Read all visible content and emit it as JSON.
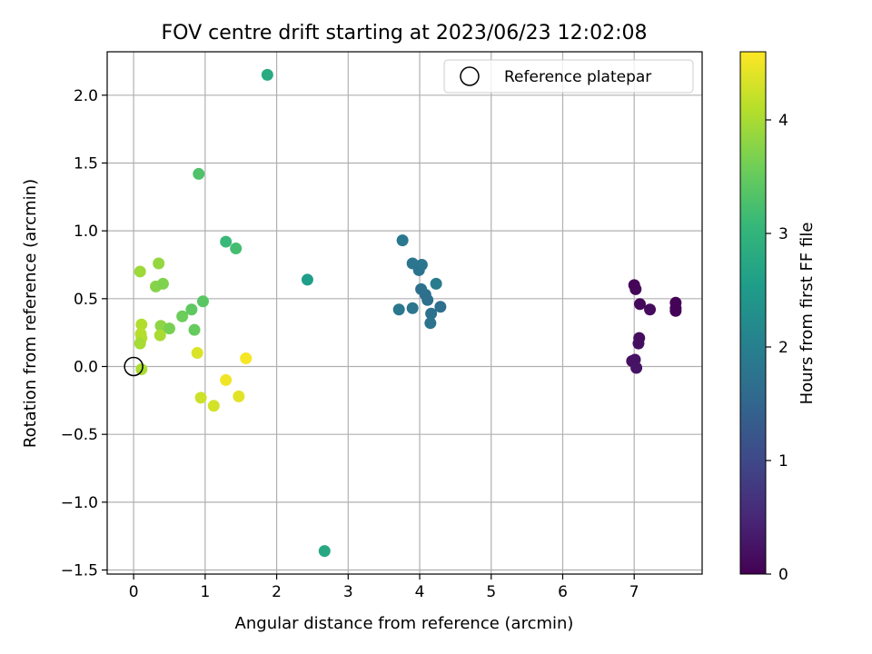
{
  "chart_data": {
    "type": "scatter",
    "title": "FOV centre drift starting at 2023/06/23 12:02:08",
    "xlabel": "Angular distance from reference (arcmin)",
    "ylabel": "Rotation from reference (arcmin)",
    "xlim": [
      -0.37,
      7.95
    ],
    "ylim": [
      -1.53,
      2.32
    ],
    "xticks": [
      0,
      1,
      2,
      3,
      4,
      5,
      6,
      7
    ],
    "yticks": [
      -1.5,
      -1.0,
      -0.5,
      0.0,
      0.5,
      1.0,
      1.5,
      2.0
    ],
    "xtick_labels": [
      "0",
      "1",
      "2",
      "3",
      "4",
      "5",
      "6",
      "7"
    ],
    "ytick_labels": [
      "−1.5",
      "−1.0",
      "−0.5",
      "0.0",
      "0.5",
      "1.0",
      "1.5",
      "2.0"
    ],
    "grid": true,
    "legend": {
      "placement": "top-right",
      "label": "Reference platepar"
    },
    "reference_point": {
      "x": 0,
      "y": 0
    },
    "colorbar": {
      "label": "Hours from first FF file",
      "range": [
        0,
        4.6
      ],
      "ticks": [
        0,
        1,
        2,
        3,
        4
      ],
      "tick_labels": [
        "0",
        "1",
        "2",
        "3",
        "4"
      ],
      "colormap": "viridis"
    },
    "colormap_stops": [
      "#440154",
      "#482878",
      "#3e4a89",
      "#31688e",
      "#26828e",
      "#1f9e89",
      "#35b779",
      "#6ece58",
      "#b5de2b",
      "#fde725"
    ],
    "points": [
      {
        "x": 7.0,
        "y": 0.6,
        "c": 0.05
      },
      {
        "x": 7.02,
        "y": 0.57,
        "c": 0.07
      },
      {
        "x": 7.08,
        "y": 0.46,
        "c": 0.1
      },
      {
        "x": 7.22,
        "y": 0.42,
        "c": 0.13
      },
      {
        "x": 7.58,
        "y": 0.47,
        "c": 0.02
      },
      {
        "x": 7.58,
        "y": 0.43,
        "c": 0.04
      },
      {
        "x": 7.58,
        "y": 0.41,
        "c": 0.03
      },
      {
        "x": 7.07,
        "y": 0.21,
        "c": 0.15
      },
      {
        "x": 7.06,
        "y": 0.17,
        "c": 0.18
      },
      {
        "x": 6.97,
        "y": 0.04,
        "c": 0.2
      },
      {
        "x": 7.01,
        "y": 0.05,
        "c": 0.22
      },
      {
        "x": 7.03,
        "y": -0.01,
        "c": 0.25
      },
      {
        "x": 3.76,
        "y": 0.93,
        "c": 1.85
      },
      {
        "x": 3.9,
        "y": 0.76,
        "c": 1.8
      },
      {
        "x": 3.99,
        "y": 0.71,
        "c": 1.75
      },
      {
        "x": 4.03,
        "y": 0.75,
        "c": 1.78
      },
      {
        "x": 4.23,
        "y": 0.61,
        "c": 1.9
      },
      {
        "x": 4.02,
        "y": 0.57,
        "c": 1.7
      },
      {
        "x": 4.08,
        "y": 0.53,
        "c": 1.72
      },
      {
        "x": 4.11,
        "y": 0.49,
        "c": 1.68
      },
      {
        "x": 4.29,
        "y": 0.44,
        "c": 1.65
      },
      {
        "x": 3.71,
        "y": 0.42,
        "c": 1.82
      },
      {
        "x": 3.9,
        "y": 0.43,
        "c": 1.78
      },
      {
        "x": 4.16,
        "y": 0.39,
        "c": 1.72
      },
      {
        "x": 4.15,
        "y": 0.32,
        "c": 1.75
      },
      {
        "x": 1.87,
        "y": 2.15,
        "c": 2.8
      },
      {
        "x": 2.43,
        "y": 0.64,
        "c": 2.55
      },
      {
        "x": 2.67,
        "y": -1.36,
        "c": 2.75
      },
      {
        "x": 0.91,
        "y": 1.42,
        "c": 3.3
      },
      {
        "x": 1.29,
        "y": 0.92,
        "c": 3.1
      },
      {
        "x": 1.43,
        "y": 0.87,
        "c": 3.2
      },
      {
        "x": 0.35,
        "y": 0.76,
        "c": 3.85
      },
      {
        "x": 0.09,
        "y": 0.7,
        "c": 3.92
      },
      {
        "x": 0.31,
        "y": 0.59,
        "c": 3.75
      },
      {
        "x": 0.41,
        "y": 0.61,
        "c": 3.7
      },
      {
        "x": 0.97,
        "y": 0.48,
        "c": 3.4
      },
      {
        "x": 0.81,
        "y": 0.42,
        "c": 3.45
      },
      {
        "x": 0.68,
        "y": 0.37,
        "c": 3.55
      },
      {
        "x": 0.11,
        "y": 0.31,
        "c": 4.05
      },
      {
        "x": 0.38,
        "y": 0.3,
        "c": 3.8
      },
      {
        "x": 0.5,
        "y": 0.28,
        "c": 3.65
      },
      {
        "x": 0.85,
        "y": 0.27,
        "c": 3.5
      },
      {
        "x": 0.1,
        "y": 0.24,
        "c": 4.1
      },
      {
        "x": 0.11,
        "y": 0.21,
        "c": 4.08
      },
      {
        "x": 0.37,
        "y": 0.23,
        "c": 4.0
      },
      {
        "x": 0.09,
        "y": 0.17,
        "c": 3.98
      },
      {
        "x": 0.11,
        "y": -0.02,
        "c": 4.02
      },
      {
        "x": 0.89,
        "y": 0.1,
        "c": 4.35
      },
      {
        "x": 1.57,
        "y": 0.06,
        "c": 4.55
      },
      {
        "x": 1.29,
        "y": -0.1,
        "c": 4.5
      },
      {
        "x": 0.94,
        "y": -0.23,
        "c": 4.25
      },
      {
        "x": 1.12,
        "y": -0.29,
        "c": 4.3
      },
      {
        "x": 1.47,
        "y": -0.22,
        "c": 4.4
      }
    ]
  }
}
